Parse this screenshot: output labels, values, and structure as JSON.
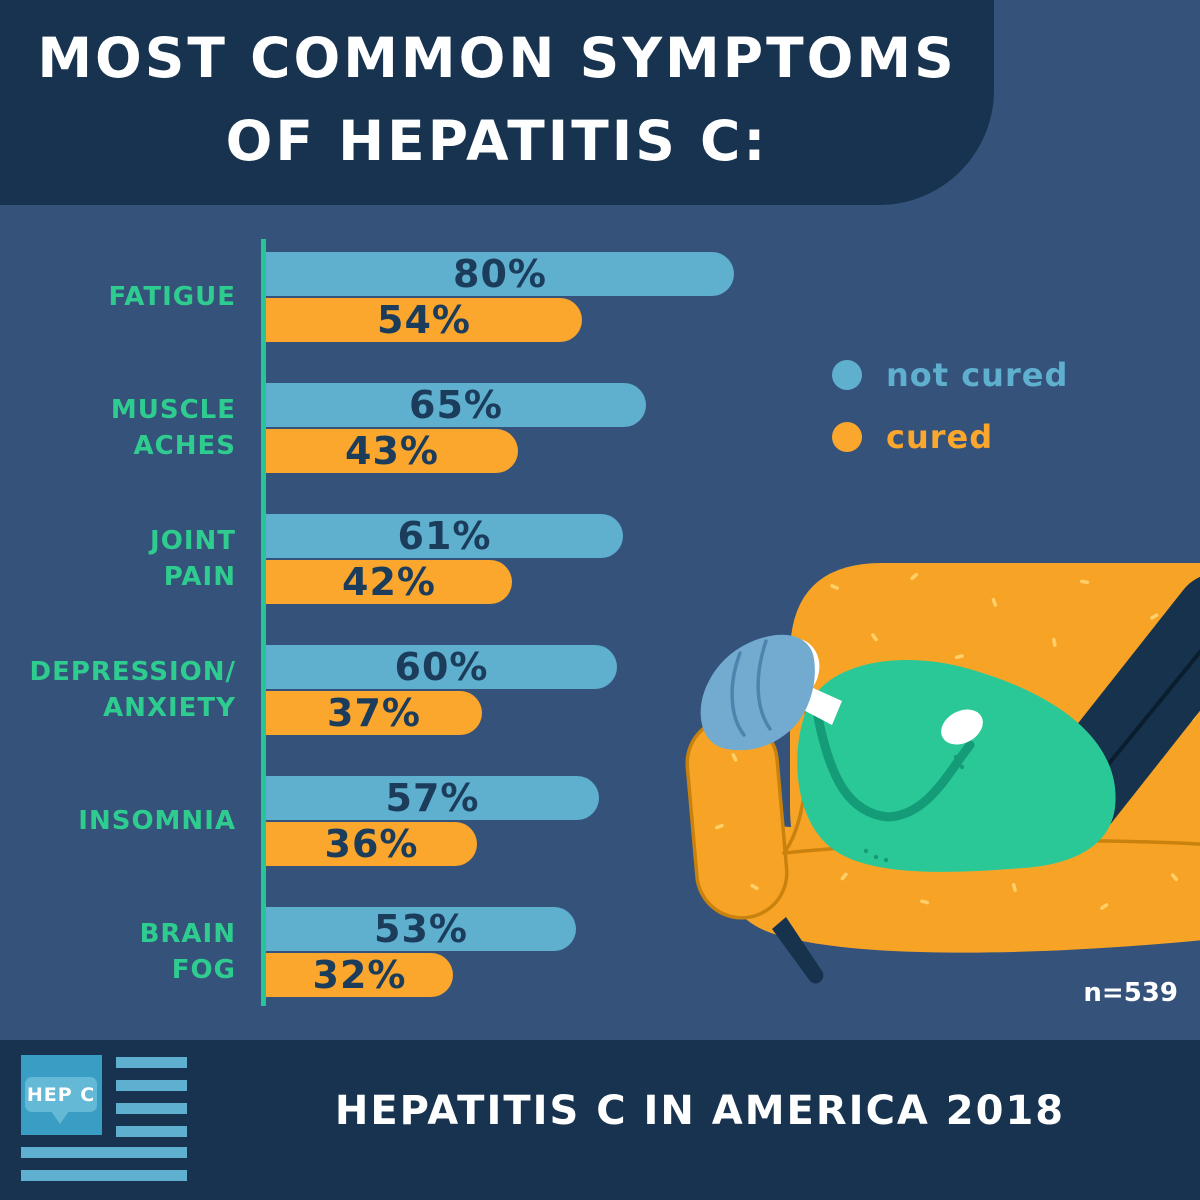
{
  "header": {
    "title_line1": "MOST COMMON SYMPTOMS",
    "title_line2": "OF HEPATITIS C:"
  },
  "legend": {
    "not_cured_label": "not cured",
    "cured_label": "cured"
  },
  "sample_note": "n=539",
  "footer": {
    "title": "HEPATITIS C IN AMERICA 2018",
    "logo_text": "HEP C"
  },
  "colors": {
    "background": "#35527B",
    "panel_navy": "#17334F",
    "not_cured_blue": "#5FAFCE",
    "cured_orange": "#FBA62C",
    "category_green": "#2FCC90",
    "axis_teal": "#27C498",
    "bar_value_text": "#1C3C5C",
    "couch_orange": "#F7A426",
    "shirt_green": "#2BC897",
    "hair_blue": "#72ABCF",
    "pants_navy": "#16324C"
  },
  "chart_data": {
    "type": "bar",
    "orientation": "horizontal",
    "title": "Most common symptoms of Hepatitis C",
    "categories": [
      "Fatigue",
      "Muscle aches",
      "Joint pain",
      "Depression/Anxiety",
      "Insomnia",
      "Brain fog"
    ],
    "category_label_lines": [
      [
        "FATIGUE"
      ],
      [
        "MUSCLE",
        "ACHES"
      ],
      [
        "JOINT",
        "PAIN"
      ],
      [
        "DEPRESSION/",
        "ANXIETY"
      ],
      [
        "INSOMNIA"
      ],
      [
        "BRAIN",
        "FOG"
      ]
    ],
    "series": [
      {
        "name": "not cured",
        "color": "#5FAFCE",
        "values": [
          80,
          65,
          61,
          60,
          57,
          53
        ]
      },
      {
        "name": "cured",
        "color": "#FBA62C",
        "values": [
          54,
          43,
          42,
          37,
          36,
          32
        ]
      }
    ],
    "value_suffix": "%",
    "xlim": [
      0,
      100
    ],
    "grid": false,
    "legend_position": "right",
    "sample_size": "n=539",
    "source": "Hepatitis C in America 2018"
  }
}
